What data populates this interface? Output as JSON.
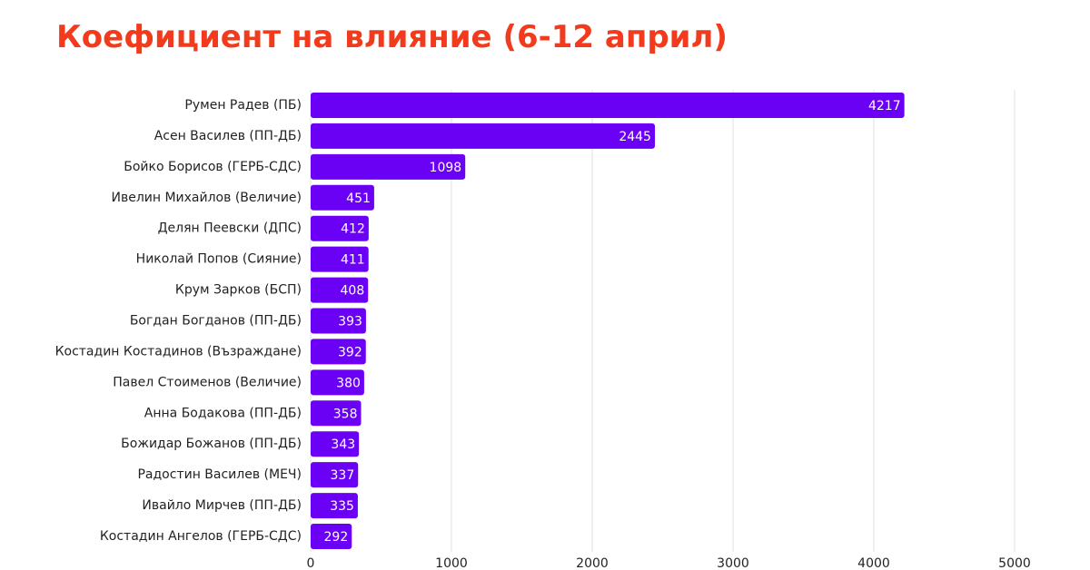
{
  "chart_data": {
    "type": "bar",
    "title": "Коефициент на влияние (6-12 април)",
    "categories": [
      "Румен Радев (ПБ)",
      "Асен Василев (ПП-ДБ)",
      "Бойко Борисов (ГЕРБ-СДС)",
      "Ивелин Михайлов (Величие)",
      "Делян Пеевски (ДПС)",
      "Николай Попов (Сияние)",
      "Крум Зарков (БСП)",
      "Богдан Богданов (ПП-ДБ)",
      "Костадин Костадинов (Възраждане)",
      "Павел Стоименов (Величие)",
      "Анна Бодакова (ПП-ДБ)",
      "Божидар Божанов (ПП-ДБ)",
      "Радостин Василев (МЕЧ)",
      "Ивайло Мирчев (ПП-ДБ)",
      "Костадин Ангелов (ГЕРБ-СДС)"
    ],
    "values": [
      4217,
      2445,
      1098,
      451,
      412,
      411,
      408,
      393,
      392,
      380,
      358,
      343,
      337,
      335,
      292
    ],
    "color": "#6a00f4",
    "xlim": [
      0,
      5000
    ],
    "xticks": [
      0,
      1000,
      2000,
      3000,
      4000,
      5000
    ],
    "grid": true
  }
}
